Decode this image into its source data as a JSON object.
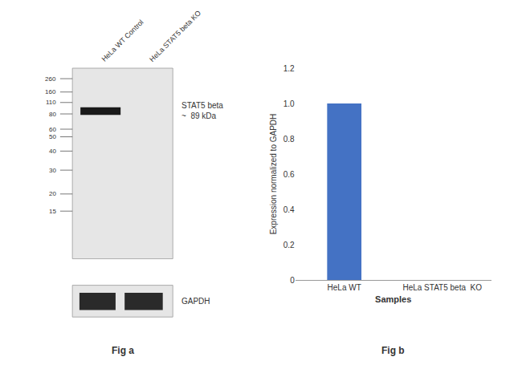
{
  "chart_data": [
    {
      "type": "blot",
      "title": "Fig a",
      "categories": [
        "HeLa WT Control",
        "HeLa STAT5 beta KO"
      ],
      "annotations": [
        "260",
        "160",
        "110",
        "80",
        "60",
        "50",
        "40",
        "30",
        "20",
        "15",
        "STAT5 beta\n~  89 kDa",
        "GAPDH"
      ]
    },
    {
      "type": "bar",
      "title": "Fig b",
      "categories": [
        "HeLa WT",
        "HeLa STAT5 beta  KO"
      ],
      "values": [
        1.0,
        0.0
      ],
      "color": "#4472c4",
      "xlabel": "Samples",
      "ylabel": "Expression normalized to GAPDH",
      "ylim": [
        0,
        1.2
      ],
      "yticks": [
        0,
        0.2,
        0.4,
        0.6,
        0.8,
        {
          "value": 1.0,
          "label": "1.0"
        },
        1.2
      ],
      "grid": false
    }
  ]
}
